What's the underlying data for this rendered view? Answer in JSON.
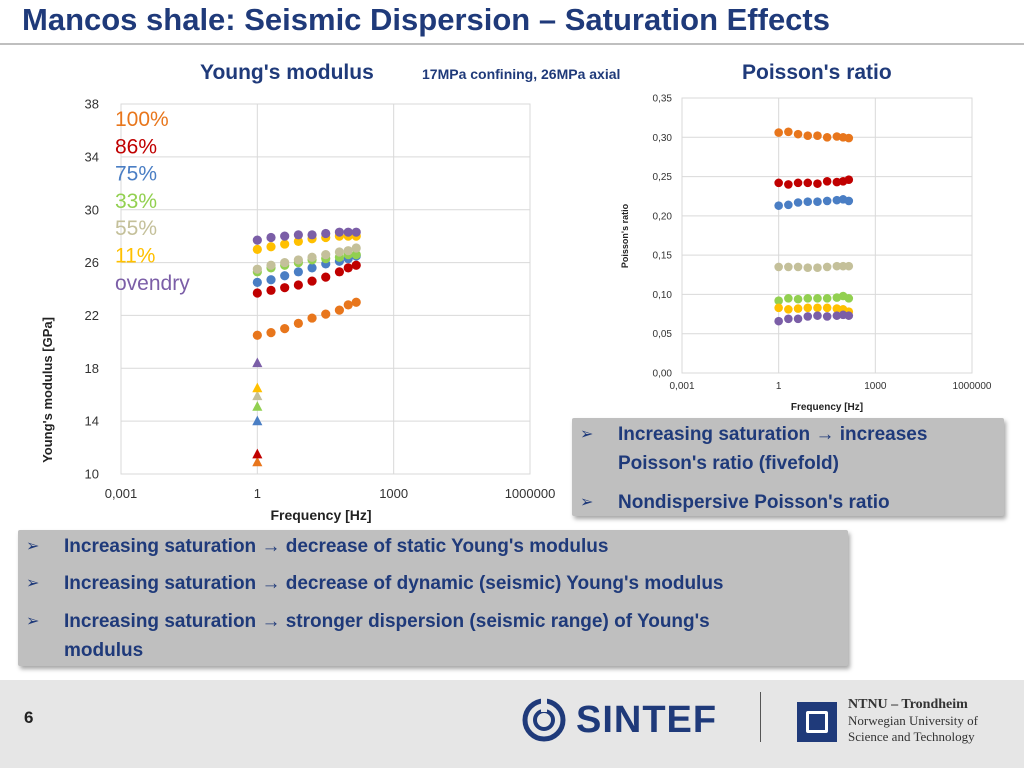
{
  "slide": {
    "title": "Mancos shale: Seismic Dispersion – Saturation Effects",
    "page_number": "6"
  },
  "headings": {
    "youngs": "Young's modulus",
    "conditions": "17MPa confining, 26MPa axial",
    "poisson": "Poisson's ratio"
  },
  "bullets_right": [
    {
      "text": "Increasing saturation → increases Poisson's ratio (fivefold)"
    },
    {
      "text": "Nondispersive Poisson's ratio"
    }
  ],
  "bullets_bottom": [
    {
      "text": "Increasing saturation → decrease of static Young's modulus"
    },
    {
      "text": "Increasing saturation → decrease of dynamic (seismic) Young's modulus"
    },
    {
      "text": "Increasing saturation → stronger dispersion (seismic range) of Young's modulus"
    }
  ],
  "logos": {
    "sintef": "SINTEF",
    "ntnu_line1": "NTNU – Trondheim",
    "ntnu_line2": "Norwegian University of",
    "ntnu_line3": "Science and Technology"
  },
  "chart_data": [
    {
      "type": "scatter",
      "id": "youngs",
      "xscale": "log",
      "xlim": [
        0.001,
        1000000
      ],
      "xticks": [
        "0,001",
        "1",
        "1000",
        "1000000"
      ],
      "ylim": [
        10,
        38
      ],
      "yticks": [
        "10",
        "14",
        "18",
        "22",
        "26",
        "30",
        "34",
        "38"
      ],
      "xlabel": "Frequency [Hz]",
      "ylabel": "Young's modulus [GPa]",
      "freqs": [
        1,
        2,
        4,
        8,
        16,
        32,
        64,
        100,
        150
      ],
      "series": [
        {
          "name": "100%",
          "color": "#e8761c",
          "values": [
            20.5,
            20.7,
            21.0,
            21.4,
            21.8,
            22.1,
            22.4,
            22.8,
            23.0
          ],
          "static": 10.9
        },
        {
          "name": "86%",
          "color": "#c00000",
          "values": [
            23.7,
            23.9,
            24.1,
            24.3,
            24.6,
            24.9,
            25.3,
            25.6,
            25.8
          ],
          "static": 11.5
        },
        {
          "name": "75%",
          "color": "#4a7ec4",
          "values": [
            24.5,
            24.7,
            25.0,
            25.3,
            25.6,
            25.9,
            26.1,
            26.3,
            26.5
          ],
          "static": 14.0
        },
        {
          "name": "33%",
          "color": "#92d050",
          "values": [
            25.3,
            25.6,
            25.8,
            26.0,
            26.2,
            26.3,
            26.4,
            26.6,
            26.6
          ],
          "static": 15.1
        },
        {
          "name": "55%",
          "color": "#c4c09a",
          "values": [
            25.5,
            25.8,
            26.0,
            26.2,
            26.4,
            26.6,
            26.8,
            26.9,
            27.1
          ],
          "static": 15.9
        },
        {
          "name": "11%",
          "color": "#ffc000",
          "values": [
            27.0,
            27.2,
            27.4,
            27.6,
            27.8,
            27.9,
            28.0,
            28.0,
            28.0
          ],
          "static": 16.5
        },
        {
          "name": "ovendry",
          "color": "#7b5ea7",
          "values": [
            27.7,
            27.9,
            28.0,
            28.1,
            28.1,
            28.2,
            28.3,
            28.3,
            28.3
          ],
          "static": 18.4
        }
      ]
    },
    {
      "type": "scatter",
      "id": "poisson",
      "xscale": "log",
      "xlim": [
        0.001,
        1000000
      ],
      "xticks": [
        "0,001",
        "1",
        "1000",
        "1000000"
      ],
      "ylim": [
        0,
        0.35
      ],
      "yticks": [
        "0,00",
        "0,05",
        "0,10",
        "0,15",
        "0,20",
        "0,25",
        "0,30",
        "0,35"
      ],
      "xlabel": "Frequency [Hz]",
      "ylabel": "Poisson's ratio",
      "freqs": [
        1,
        2,
        4,
        8,
        16,
        32,
        64,
        100,
        150
      ],
      "series": [
        {
          "name": "100%",
          "color": "#e8761c",
          "values": [
            0.306,
            0.307,
            0.304,
            0.302,
            0.302,
            0.3,
            0.301,
            0.3,
            0.299
          ]
        },
        {
          "name": "86%",
          "color": "#c00000",
          "values": [
            0.242,
            0.24,
            0.242,
            0.242,
            0.241,
            0.244,
            0.243,
            0.244,
            0.246
          ]
        },
        {
          "name": "75%",
          "color": "#4a7ec4",
          "values": [
            0.213,
            0.214,
            0.217,
            0.218,
            0.218,
            0.219,
            0.22,
            0.221,
            0.219
          ]
        },
        {
          "name": "55%",
          "color": "#c4c09a",
          "values": [
            0.135,
            0.135,
            0.135,
            0.134,
            0.134,
            0.135,
            0.136,
            0.136,
            0.136
          ]
        },
        {
          "name": "33%",
          "color": "#92d050",
          "values": [
            0.092,
            0.095,
            0.094,
            0.095,
            0.095,
            0.095,
            0.096,
            0.098,
            0.095
          ]
        },
        {
          "name": "11%",
          "color": "#ffc000",
          "values": [
            0.083,
            0.081,
            0.082,
            0.083,
            0.083,
            0.083,
            0.082,
            0.081,
            0.078
          ]
        },
        {
          "name": "ovendry",
          "color": "#7b5ea7",
          "values": [
            0.066,
            0.069,
            0.069,
            0.072,
            0.073,
            0.072,
            0.073,
            0.074,
            0.073
          ]
        }
      ]
    }
  ]
}
